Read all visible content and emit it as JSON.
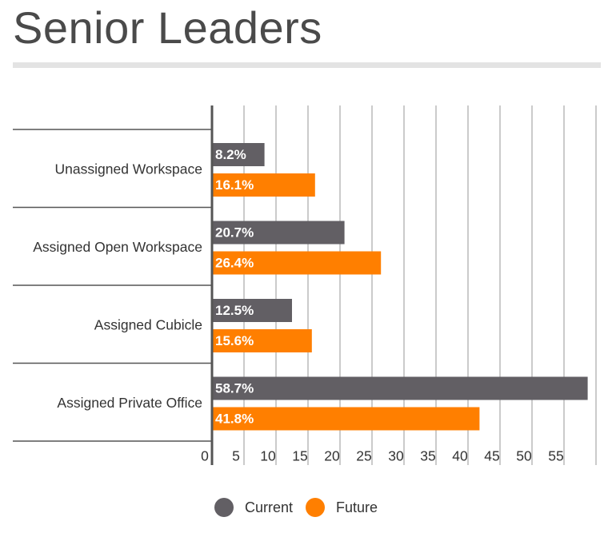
{
  "title": "Senior Leaders",
  "colors": {
    "current": "#625f64",
    "future": "#ff7f00",
    "grid": "#b5b5b5",
    "axis": "#555555"
  },
  "legend": {
    "current_label": "Current",
    "future_label": "Future"
  },
  "chart_data": {
    "type": "bar",
    "orientation": "horizontal",
    "categories": [
      "Unassigned Workspace",
      "Assigned Open Workspace",
      "Assigned Cubicle",
      "Assigned Private Office"
    ],
    "series": [
      {
        "name": "Current",
        "values": [
          8.2,
          20.7,
          12.5,
          58.7
        ],
        "labels": [
          "8.2%",
          "20.7%",
          "12.5%",
          "58.7%"
        ]
      },
      {
        "name": "Future",
        "values": [
          16.1,
          26.4,
          15.6,
          41.8
        ],
        "labels": [
          "16.1%",
          "26.4%",
          "15.6%",
          "41.8%"
        ]
      }
    ],
    "xticks": [
      "0",
      "5",
      "10",
      "15",
      "20",
      "25",
      "30",
      "35",
      "40",
      "45",
      "50",
      "55"
    ],
    "xlim": [
      0,
      60
    ],
    "grid": true,
    "legend_position": "bottom"
  }
}
